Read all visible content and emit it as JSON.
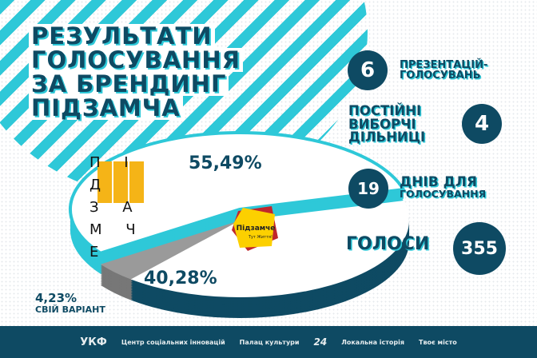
{
  "title_lines": [
    "РЕЗУЛЬТАТИ",
    "ГОЛОСУВАННЯ",
    "ЗА БРЕНДИНГ",
    "ПІДЗАМЧА"
  ],
  "stats": [
    {
      "number": "6",
      "text_lines": [
        "ПРЕЗЕНТАЦІЙ-",
        "ГОЛОСУВАНЬ"
      ]
    },
    {
      "number": "4",
      "text_lines": [
        "ПОСТІЙНІ",
        "ВИБОРЧІ",
        "ДІЛЬНИЦІ"
      ]
    },
    {
      "number": "19",
      "text_lines": [
        "ДНІВ ДЛЯ",
        "ГОЛОСУВАННЯ"
      ]
    },
    {
      "number": "355",
      "text_lines": [
        "ГОЛОСИ"
      ]
    }
  ],
  "logos": {
    "logo_a": "ПІД ЗА МЧЕ",
    "logo_b": "Підзамче",
    "logo_b_sub": "Тут Життя!"
  },
  "footer_partners": [
    "УКФ",
    "Центр соціальних інновацій",
    "Палац культури",
    "24",
    "Локальна історія",
    "Твоє місто"
  ],
  "colors": {
    "navy": "#0e4a63",
    "cyan": "#2ec8d8",
    "gray": "#8a8a8a"
  },
  "chart_data": {
    "type": "pie",
    "title": "РЕЗУЛЬТАТИ ГОЛОСУВАННЯ ЗА БРЕНДИНГ ПІДЗАМЧА",
    "slices": [
      {
        "value": 55.49,
        "label": "55,49%",
        "name": ""
      },
      {
        "value": 4.23,
        "label": "4,23%",
        "name": "СВІЙ ВАРІАНТ"
      },
      {
        "value": 40.28,
        "label": "40,28%",
        "name": ""
      }
    ]
  }
}
